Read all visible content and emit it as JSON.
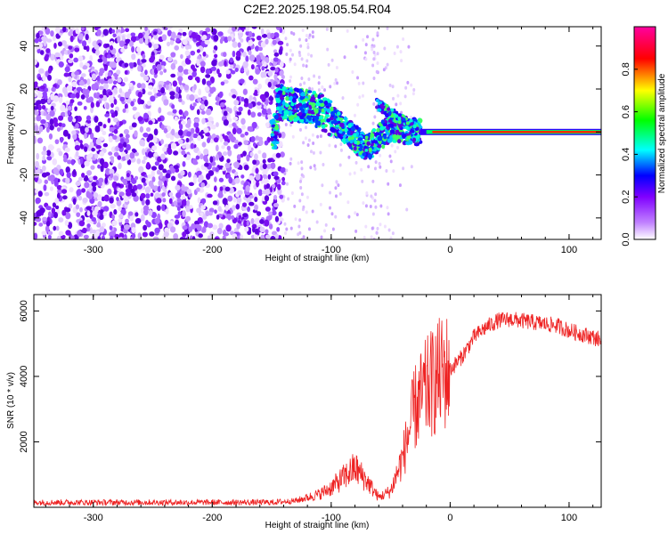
{
  "title": "C2E2.2025.198.05.54.R04",
  "chart_data": [
    {
      "type": "heatmap",
      "xlabel": "Height of straight line (km)",
      "ylabel": "Frequency (Hz)",
      "xlim": [
        -350,
        127
      ],
      "ylim": [
        -50,
        49
      ],
      "xticks": [
        -300,
        -200,
        -100,
        0,
        100
      ],
      "yticks": [
        -40,
        -20,
        0,
        20,
        40
      ],
      "colorbar": {
        "label": "Normalized spectral amplitude",
        "range": [
          0,
          1
        ],
        "ticks": [
          "0.0",
          "0.2",
          "0.4",
          "0.6",
          "0.8"
        ],
        "tick_values": [
          0.0,
          0.2,
          0.4,
          0.6,
          0.8
        ],
        "colors": [
          "#ffffff",
          "#a000ff",
          "#0000ff",
          "#00ffff",
          "#00ff00",
          "#ffff00",
          "#ff0000",
          "#ff00ff"
        ]
      },
      "description_points": [
        {
          "x": -145,
          "y": 14
        },
        {
          "x": -110,
          "y": 10
        },
        {
          "x": -90,
          "y": 2
        },
        {
          "x": -70,
          "y": -8
        },
        {
          "x": -50,
          "y": 2
        },
        {
          "x": -30,
          "y": 0
        },
        {
          "x": 0,
          "y": 0
        },
        {
          "x": 127,
          "y": 0
        }
      ]
    },
    {
      "type": "line",
      "xlabel": "Height of straight line (km)",
      "ylabel": "SNR (10 * v/v)",
      "xlim": [
        -350,
        127
      ],
      "ylim": [
        0,
        6500
      ],
      "xticks": [
        -300,
        -200,
        -100,
        0,
        100
      ],
      "yticks": [
        2000,
        4000,
        6000
      ],
      "color": "#ee2222",
      "x": [
        -350,
        -300,
        -250,
        -200,
        -150,
        -130,
        -110,
        -100,
        -90,
        -80,
        -70,
        -60,
        -50,
        -40,
        -30,
        -20,
        -10,
        0,
        10,
        20,
        30,
        40,
        50,
        60,
        70,
        80,
        90,
        100,
        110,
        120,
        127
      ],
      "y": [
        150,
        150,
        150,
        150,
        150,
        200,
        400,
        600,
        900,
        1200,
        800,
        300,
        500,
        1500,
        3000,
        3600,
        4000,
        4200,
        4600,
        5200,
        5500,
        5700,
        5750,
        5700,
        5650,
        5600,
        5550,
        5400,
        5300,
        5200,
        5100
      ]
    }
  ]
}
